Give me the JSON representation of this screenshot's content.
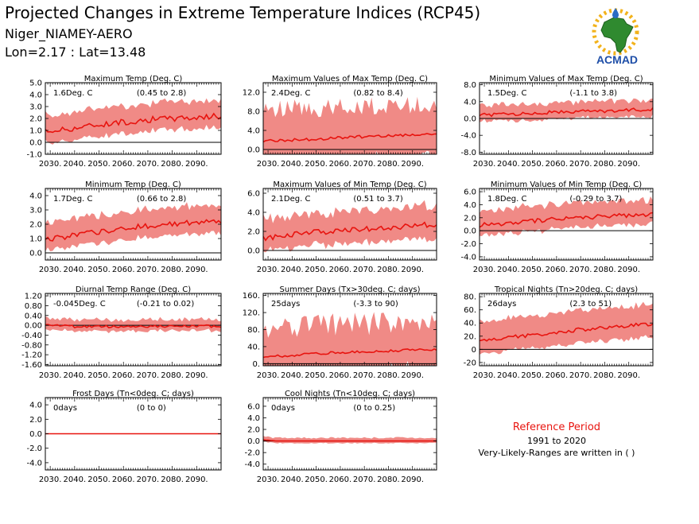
{
  "header": {
    "title": "Projected Changes in Extreme Temperature Indices (RCP45)",
    "station": "Niger_NIAMEY-AERO",
    "coords": "Lon=2.17 : Lat=13.48"
  },
  "logo": {
    "text": "ACMAD"
  },
  "reference": {
    "title": "Reference Period",
    "years": "1991 to 2020",
    "note": "Very-Likely-Ranges are written in ( )"
  },
  "colors": {
    "band": "#f08a86",
    "line": "#e8140f",
    "zero": "#000000"
  },
  "chart_data": [
    {
      "type": "area",
      "title": "Maximum Temp (Deg. C)",
      "value_label": "1.6Deg. C",
      "range_label": "(0.45 to 2.8)",
      "x_ticks": [
        "2030.",
        "2040.",
        "2050.",
        "2060.",
        "2070.",
        "2080.",
        "2090."
      ],
      "y_ticks": [
        "5.0",
        "4.0",
        "3.0",
        "2.0",
        "1.0",
        "0.0",
        "-1.0"
      ],
      "ylim": [
        -1.0,
        5.0
      ],
      "x_range": [
        2028,
        2100
      ],
      "anchors_x": [
        2028,
        2040,
        2050,
        2060,
        2070,
        2080,
        2090,
        2100
      ],
      "mean": [
        0.9,
        1.2,
        1.5,
        1.7,
        1.9,
        2.0,
        2.1,
        2.2
      ],
      "band_width": 1.2,
      "band_noise": 0.35,
      "noise": 0.25
    },
    {
      "type": "area",
      "title": "Maximum Values of Max Temp (Deg. C)",
      "value_label": "2.4Deg. C",
      "range_label": "(0.82 to 8.4)",
      "x_ticks": [
        "2030.",
        "2040.",
        "2050.",
        "2060.",
        "2070.",
        "2080.",
        "2090."
      ],
      "y_ticks": [
        "12.0",
        "8.0",
        "4.0",
        "0.0"
      ],
      "ylim": [
        -1.0,
        14.0
      ],
      "x_range": [
        2028,
        2100
      ],
      "anchors_x": [
        2028,
        2040,
        2050,
        2060,
        2070,
        2080,
        2090,
        2100
      ],
      "mean": [
        1.8,
        2.0,
        2.2,
        2.5,
        2.7,
        2.9,
        3.1,
        3.2
      ],
      "band_width": 4.5,
      "band_noise": 3.8,
      "noise": 0.3
    },
    {
      "type": "area",
      "title": "Minimum Values of Max Temp (Deg. C)",
      "value_label": "1.5Deg. C",
      "range_label": "(-1.1 to 3.8)",
      "x_ticks": [
        "2030.",
        "2040.",
        "2050.",
        "2060.",
        "2070.",
        "2080.",
        "2090."
      ],
      "y_ticks": [
        "8.0",
        "4.0",
        "0.0",
        "-4.0",
        "-8.0"
      ],
      "ylim": [
        -8.5,
        8.5
      ],
      "x_range": [
        2028,
        2100
      ],
      "anchors_x": [
        2028,
        2040,
        2050,
        2060,
        2070,
        2080,
        2090,
        2100
      ],
      "mean": [
        0.8,
        1.0,
        1.3,
        1.5,
        1.7,
        1.8,
        2.0,
        2.2
      ],
      "band_width": 1.8,
      "band_noise": 1.0,
      "noise": 0.4
    },
    {
      "type": "area",
      "title": "Minimum Temp (Deg. C)",
      "value_label": "1.7Deg. C",
      "range_label": "(0.66 to 2.8)",
      "x_ticks": [
        "2030.",
        "2040.",
        "2050.",
        "2060.",
        "2070.",
        "2080.",
        "2090."
      ],
      "y_ticks": [
        "4.0",
        "3.0",
        "2.0",
        "1.0",
        "0.0"
      ],
      "ylim": [
        -0.5,
        4.5
      ],
      "x_range": [
        2028,
        2100
      ],
      "anchors_x": [
        2028,
        2040,
        2050,
        2060,
        2070,
        2080,
        2090,
        2100
      ],
      "mean": [
        0.9,
        1.2,
        1.5,
        1.7,
        1.9,
        2.0,
        2.1,
        2.2
      ],
      "band_width": 1.0,
      "band_noise": 0.3,
      "noise": 0.2
    },
    {
      "type": "area",
      "title": "Maximum Values of Min Temp (Deg. C)",
      "value_label": "2.1Deg. C",
      "range_label": "(0.51 to 3.7)",
      "x_ticks": [
        "2030.",
        "2040.",
        "2050.",
        "2060.",
        "2070.",
        "2080.",
        "2090."
      ],
      "y_ticks": [
        "6.0",
        "4.0",
        "2.0",
        "0.0"
      ],
      "ylim": [
        -1.0,
        6.5
      ],
      "x_range": [
        2028,
        2100
      ],
      "anchors_x": [
        2028,
        2040,
        2050,
        2060,
        2070,
        2080,
        2090,
        2100
      ],
      "mean": [
        1.3,
        1.6,
        1.9,
        2.1,
        2.3,
        2.4,
        2.6,
        2.7
      ],
      "band_width": 1.6,
      "band_noise": 0.8,
      "noise": 0.3
    },
    {
      "type": "area",
      "title": "Minimum Values of Min Temp (Deg. C)",
      "value_label": "1.8Deg. C",
      "range_label": "(-0.29 to 3.7)",
      "x_ticks": [
        "2030.",
        "2040.",
        "2050.",
        "2060.",
        "2070.",
        "2080.",
        "2090."
      ],
      "y_ticks": [
        "6.0",
        "4.0",
        "2.0",
        "0.0",
        "-2.0",
        "-4.0"
      ],
      "ylim": [
        -4.5,
        6.5
      ],
      "x_range": [
        2028,
        2100
      ],
      "anchors_x": [
        2028,
        2040,
        2050,
        2060,
        2070,
        2080,
        2090,
        2100
      ],
      "mean": [
        0.9,
        1.2,
        1.5,
        1.8,
        2.0,
        2.2,
        2.4,
        2.6
      ],
      "band_width": 1.8,
      "band_noise": 0.9,
      "noise": 0.35
    },
    {
      "type": "area",
      "title": "Diurnal Temp Range (Deg. C)",
      "value_label": "-0.045Deg. C",
      "range_label": "(-0.21 to 0.02)",
      "x_ticks": [
        "2030.",
        "2040.",
        "2050.",
        "2060.",
        "2070.",
        "2080.",
        "2090."
      ],
      "y_ticks": [
        "1.20",
        "0.80",
        "0.40",
        "0.00",
        "-0.40",
        "-0.80",
        "-1.20",
        "-1.60"
      ],
      "ylim": [
        -1.65,
        1.3
      ],
      "x_range": [
        2028,
        2100
      ],
      "anchors_x": [
        2028,
        2040,
        2050,
        2060,
        2070,
        2080,
        2090,
        2100
      ],
      "mean": [
        0.05,
        -0.05,
        -0.05,
        -0.05,
        -0.04,
        -0.05,
        -0.04,
        -0.03
      ],
      "band_width": 0.2,
      "band_noise": 0.15,
      "noise": 0.05
    },
    {
      "type": "area",
      "title": "Summer Days (Tx>30deg. C; days)",
      "value_label": "25days",
      "range_label": "(-3.3 to 90)",
      "x_ticks": [
        "2030.",
        "2040.",
        "2050.",
        "2060.",
        "2070.",
        "2080.",
        "2090."
      ],
      "y_ticks": [
        "160.",
        "120.",
        "80.",
        "40.",
        "0."
      ],
      "ylim": [
        -5,
        165
      ],
      "x_range": [
        2028,
        2100
      ],
      "anchors_x": [
        2028,
        2040,
        2050,
        2060,
        2070,
        2080,
        2090,
        2100
      ],
      "mean": [
        15,
        20,
        24,
        26,
        28,
        30,
        32,
        33
      ],
      "band_width": 40,
      "band_noise": 55,
      "noise": 3
    },
    {
      "type": "area",
      "title": "Tropical Nights (Tn>20deg. C; days)",
      "value_label": "26days",
      "range_label": "(2.3 to 51)",
      "x_ticks": [
        "2030.",
        "2040.",
        "2050.",
        "2060.",
        "2070.",
        "2080.",
        "2090."
      ],
      "y_ticks": [
        "80.",
        "60.",
        "40.",
        "20.",
        "0",
        "-20"
      ],
      "ylim": [
        -25,
        85
      ],
      "x_range": [
        2028,
        2100
      ],
      "anchors_x": [
        2028,
        2040,
        2050,
        2060,
        2070,
        2080,
        2090,
        2100
      ],
      "mean": [
        12,
        18,
        22,
        26,
        30,
        33,
        36,
        38
      ],
      "band_width": 25,
      "band_noise": 8,
      "noise": 3
    },
    {
      "type": "area",
      "title": "Frost Days (Tn<0deg. C; days)",
      "value_label": "0days",
      "range_label": "(0 to 0)",
      "x_ticks": [
        "2030.",
        "2040.",
        "2050.",
        "2060.",
        "2070.",
        "2080.",
        "2090."
      ],
      "y_ticks": [
        "4.0",
        "2.0",
        "0.0",
        "-2.0",
        "-4.0"
      ],
      "ylim": [
        -5,
        5
      ],
      "x_range": [
        2028,
        2100
      ],
      "anchors_x": [
        2028,
        2100
      ],
      "mean": [
        0,
        0
      ],
      "band_width": 0,
      "band_noise": 0,
      "noise": 0
    },
    {
      "type": "area",
      "title": "Cool Nights (Tn<10deg. C; days)",
      "value_label": "0days",
      "range_label": "(0 to 0.25)",
      "x_ticks": [
        "2030.",
        "2040.",
        "2050.",
        "2060.",
        "2070.",
        "2080.",
        "2090."
      ],
      "y_ticks": [
        "6.0",
        "4.0",
        "2.0",
        "0.0",
        "-2.0",
        "-4.0"
      ],
      "ylim": [
        -5,
        7.5
      ],
      "x_range": [
        2028,
        2100
      ],
      "anchors_x": [
        2028,
        2034,
        2100
      ],
      "mean": [
        0.2,
        0,
        0
      ],
      "band_width": 0.4,
      "band_noise": 0.3,
      "noise": 0
    }
  ]
}
